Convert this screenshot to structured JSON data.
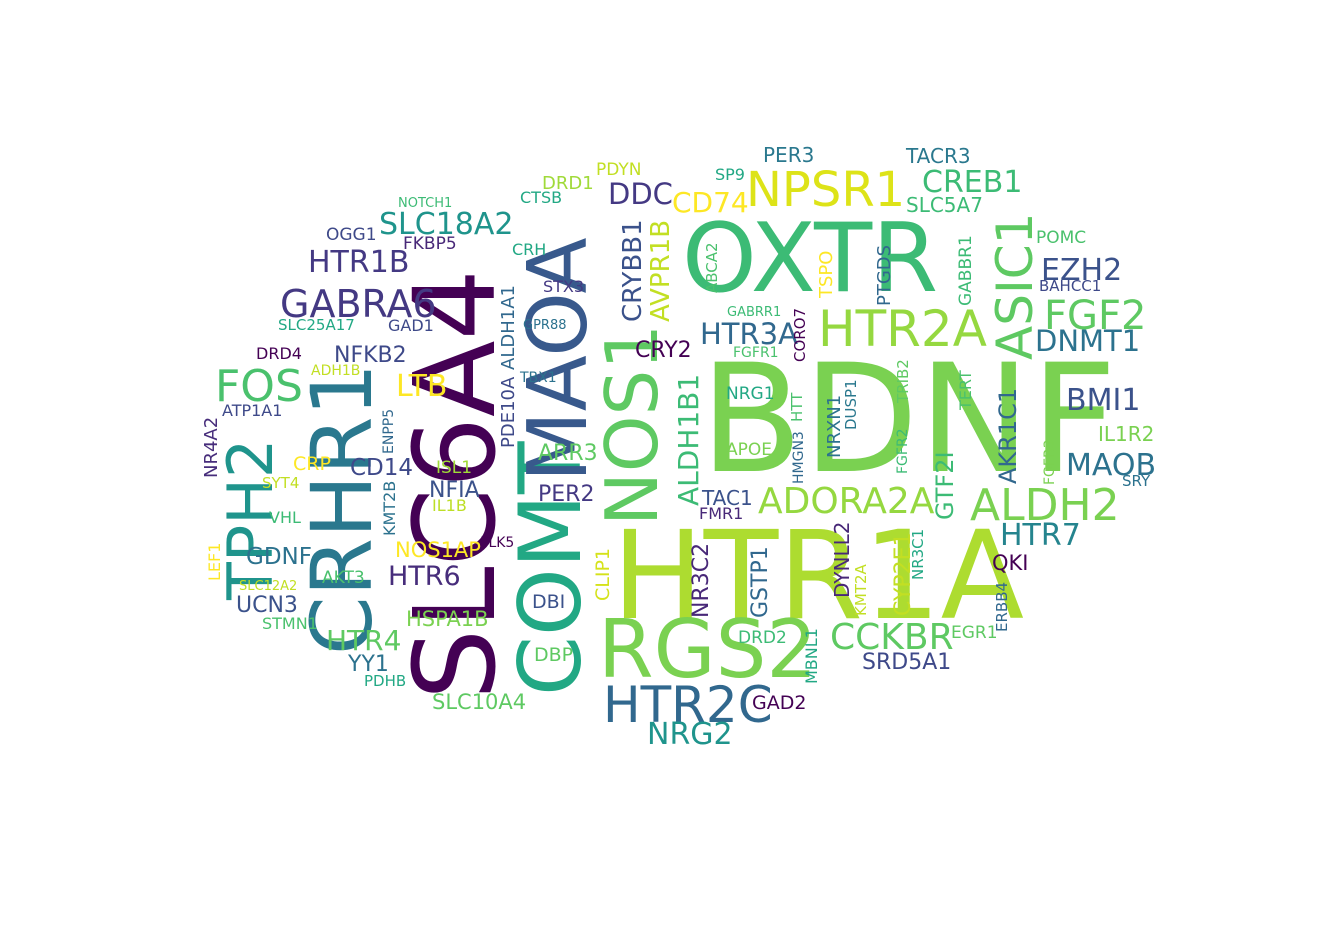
{
  "word_cloud": {
    "words": [
      {
        "text": "BDNF",
        "color": "#7ad151"
      },
      {
        "text": "HTR1A",
        "color": "#addc30"
      },
      {
        "text": "OXTR",
        "color": "#3cbb75"
      },
      {
        "text": "SLC6A4",
        "color": "#440154"
      },
      {
        "text": "COMT",
        "color": "#22a884"
      },
      {
        "text": "MAOA",
        "color": "#38598c"
      },
      {
        "text": "CRHR1",
        "color": "#2a788e"
      },
      {
        "text": "RGS2",
        "color": "#7ad151"
      },
      {
        "text": "NOS1",
        "color": "#5ec962"
      },
      {
        "text": "TPH2",
        "color": "#1f948c"
      },
      {
        "text": "HTR2A",
        "color": "#95d840"
      },
      {
        "text": "ASIC1",
        "color": "#5ec962"
      },
      {
        "text": "HTR2C",
        "color": "#31688e"
      },
      {
        "text": "NPSR1",
        "color": "#dde318"
      },
      {
        "text": "ALDH2",
        "color": "#7ad151"
      },
      {
        "text": "ADORA2A",
        "color": "#95d840"
      },
      {
        "text": "GABRA6",
        "color": "#443983"
      },
      {
        "text": "CCKBR",
        "color": "#5ec962"
      },
      {
        "text": "FOS",
        "color": "#4ac16d"
      },
      {
        "text": "FGF2",
        "color": "#5ec962"
      },
      {
        "text": "NRG2",
        "color": "#1f948c"
      },
      {
        "text": "SLC18A2",
        "color": "#1f948c"
      },
      {
        "text": "CREB1",
        "color": "#3cbb75"
      },
      {
        "text": "HTR1B",
        "color": "#443983"
      },
      {
        "text": "DNMT1",
        "color": "#2c728e"
      },
      {
        "text": "BMI1",
        "color": "#3b528b"
      },
      {
        "text": "MAOB",
        "color": "#2c728e"
      },
      {
        "text": "EZH2",
        "color": "#3b528b"
      },
      {
        "text": "HTR7",
        "color": "#25848e"
      },
      {
        "text": "HTR3A",
        "color": "#31688e"
      },
      {
        "text": "HTR4",
        "color": "#5ec962"
      },
      {
        "text": "HTR6",
        "color": "#472d7b"
      },
      {
        "text": "DDC",
        "color": "#443983"
      },
      {
        "text": "CD74",
        "color": "#fde725"
      },
      {
        "text": "CRYBB1",
        "color": "#3b528b"
      },
      {
        "text": "AVPR1B",
        "color": "#c2df23"
      },
      {
        "text": "ALDH1B1",
        "color": "#3cbb75"
      },
      {
        "text": "AKR1C1",
        "color": "#31688e"
      },
      {
        "text": "GTF2I",
        "color": "#3cbb75"
      },
      {
        "text": "NR3C2",
        "color": "#482878"
      },
      {
        "text": "GSTP1",
        "color": "#31688e"
      },
      {
        "text": "DYNLL2",
        "color": "#482878"
      },
      {
        "text": "CYP2E1",
        "color": "#c2df23"
      },
      {
        "text": "LTB",
        "color": "#fde725"
      },
      {
        "text": "GDNF",
        "color": "#2c728e"
      },
      {
        "text": "UCN3",
        "color": "#3b528b"
      },
      {
        "text": "CD14",
        "color": "#3e4989"
      },
      {
        "text": "NFIA",
        "color": "#3b528b"
      },
      {
        "text": "PER2",
        "color": "#443983"
      },
      {
        "text": "ARR3",
        "color": "#5ec962"
      },
      {
        "text": "CRY2",
        "color": "#440154"
      },
      {
        "text": "NFKB2",
        "color": "#3e4989"
      },
      {
        "text": "SRD5A1",
        "color": "#3e4989"
      },
      {
        "text": "DBP",
        "color": "#5ec962"
      },
      {
        "text": "DBI",
        "color": "#3b528b"
      },
      {
        "text": "YY1",
        "color": "#2c728e"
      },
      {
        "text": "NOS1AP",
        "color": "#fde725"
      },
      {
        "text": "HSPA1B",
        "color": "#7ad151"
      },
      {
        "text": "SLC10A4",
        "color": "#5ec962"
      },
      {
        "text": "TAC1",
        "color": "#3b528b"
      },
      {
        "text": "FMR1",
        "color": "#482878"
      },
      {
        "text": "GAD2",
        "color": "#440154"
      },
      {
        "text": "QKI",
        "color": "#440154"
      },
      {
        "text": "EGR1",
        "color": "#5ec962"
      },
      {
        "text": "SLC5A7",
        "color": "#3cbb75"
      },
      {
        "text": "PER3",
        "color": "#2a788e"
      },
      {
        "text": "TACR3",
        "color": "#2a788e"
      },
      {
        "text": "OGG1",
        "color": "#3e4989"
      },
      {
        "text": "FKBP5",
        "color": "#482878"
      },
      {
        "text": "CRH",
        "color": "#22a884"
      },
      {
        "text": "STX3",
        "color": "#443983"
      },
      {
        "text": "PDE10A",
        "color": "#3e4989"
      },
      {
        "text": "ALDH1A1",
        "color": "#31688e"
      },
      {
        "text": "SLC25A17",
        "color": "#22a884"
      },
      {
        "text": "GAD1",
        "color": "#3e4989"
      },
      {
        "text": "DRD4",
        "color": "#440154"
      },
      {
        "text": "ADH1B",
        "color": "#c2df23"
      },
      {
        "text": "ATP1A1",
        "color": "#3e4989"
      },
      {
        "text": "NR4A2",
        "color": "#472d7b"
      },
      {
        "text": "ENPP5",
        "color": "#31688e"
      },
      {
        "text": "CRP",
        "color": "#fde725"
      },
      {
        "text": "SYT4",
        "color": "#c2df23"
      },
      {
        "text": "ISL1",
        "color": "#a0da39"
      },
      {
        "text": "IL1B",
        "color": "#bddf26"
      },
      {
        "text": "KMT2B",
        "color": "#2c728e"
      },
      {
        "text": "VHL",
        "color": "#3cbb75"
      },
      {
        "text": "LEF1",
        "color": "#fde725"
      },
      {
        "text": "SLC12A2",
        "color": "#c2df23"
      },
      {
        "text": "AKT3",
        "color": "#4ac16d"
      },
      {
        "text": "STMN1",
        "color": "#4ac16d"
      },
      {
        "text": "PDHB",
        "color": "#22a884"
      },
      {
        "text": "PLK5",
        "color": "#440154"
      },
      {
        "text": "CLIP1",
        "color": "#d5e21a"
      },
      {
        "text": "DRD2",
        "color": "#3cbb75"
      },
      {
        "text": "MBNL1",
        "color": "#22a884"
      },
      {
        "text": "KMT2A",
        "color": "#c2df23"
      },
      {
        "text": "NR3C1",
        "color": "#22a884"
      },
      {
        "text": "ERBB4",
        "color": "#31688e"
      },
      {
        "text": "DRD1",
        "color": "#a0da39"
      },
      {
        "text": "PDYN",
        "color": "#c2df23"
      },
      {
        "text": "CTSB",
        "color": "#22a884"
      },
      {
        "text": "NOTCH1",
        "color": "#3cbb75"
      },
      {
        "text": "SP9",
        "color": "#22a884"
      },
      {
        "text": "ABCA2",
        "color": "#4ac16d"
      },
      {
        "text": "GABRR1",
        "color": "#3cbb75"
      },
      {
        "text": "TSPO",
        "color": "#fde725"
      },
      {
        "text": "PTGDS",
        "color": "#31688e"
      },
      {
        "text": "GABBR1",
        "color": "#3cbb75"
      },
      {
        "text": "POMC",
        "color": "#4ac16d"
      },
      {
        "text": "BAHCC1",
        "color": "#3e4989"
      },
      {
        "text": "CORO7",
        "color": "#440154"
      },
      {
        "text": "FGFR1",
        "color": "#4ac16d"
      },
      {
        "text": "NRG1",
        "color": "#22a884"
      },
      {
        "text": "APOE",
        "color": "#7ad151"
      },
      {
        "text": "HTT",
        "color": "#4ac16d"
      },
      {
        "text": "HMGN3",
        "color": "#31688e"
      },
      {
        "text": "NRXN1",
        "color": "#2c728e"
      },
      {
        "text": "DUSP1",
        "color": "#2a788e"
      },
      {
        "text": "TRIB2",
        "color": "#5ec962"
      },
      {
        "text": "FGFR2",
        "color": "#3cbb75"
      },
      {
        "text": "TERT",
        "color": "#4ac16d"
      },
      {
        "text": "IL1R2",
        "color": "#7ad151"
      },
      {
        "text": "FGFR3",
        "color": "#7ad151"
      },
      {
        "text": "SRY",
        "color": "#2c728e"
      },
      {
        "text": "GPR88",
        "color": "#2c728e"
      },
      {
        "text": "TBX1",
        "color": "#2c728e"
      }
    ]
  }
}
